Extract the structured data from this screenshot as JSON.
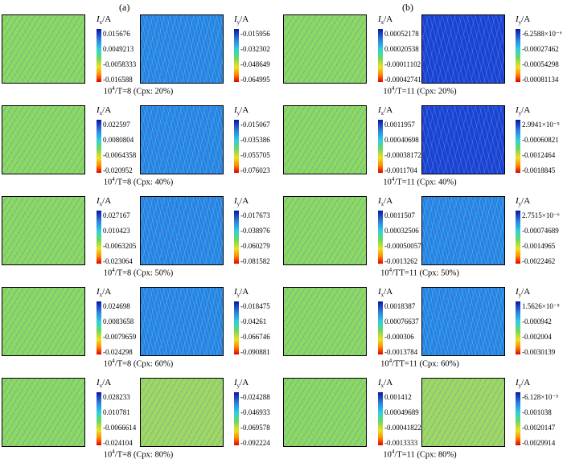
{
  "panels": {
    "a": {
      "label": "(a)"
    },
    "b": {
      "label": "(b)"
    }
  },
  "colorbar_titles": {
    "x": "I",
    "x_sub": "x",
    "y": "I",
    "y_sub": "y",
    "unit": "/A"
  },
  "rows_a": [
    {
      "caption_prefix": "10",
      "caption_sup": "4",
      "caption_rest": "/T=8 (Cpx: 20%)",
      "ix": [
        "0.015676",
        "0.0049213",
        "-0.0058333",
        "-0.016588"
      ],
      "iy": [
        "-0.015956",
        "-0.032302",
        "-0.048649",
        "-0.064995"
      ]
    },
    {
      "caption_prefix": "10",
      "caption_sup": "4",
      "caption_rest": "/T=8 (Cpx: 40%)",
      "ix": [
        "0.022597",
        "0.0080804",
        "-0.0064358",
        "-0.020952"
      ],
      "iy": [
        "-0.015067",
        "-0.035386",
        "-0.055705",
        "-0.076023"
      ]
    },
    {
      "caption_prefix": "10",
      "caption_sup": "4",
      "caption_rest": "/T=8 (Cpx: 50%)",
      "ix": [
        "0.027167",
        "0.010423",
        "-0.0063205",
        "-0.023064"
      ],
      "iy": [
        "-0.017673",
        "-0.038976",
        "-0.060279",
        "-0.081582"
      ]
    },
    {
      "caption_prefix": "10",
      "caption_sup": "4",
      "caption_rest": "/T=8 (Cpx: 60%)",
      "ix": [
        "0.024698",
        "0.0083658",
        "-0.0079659",
        "-0.024298"
      ],
      "iy": [
        "-0.018475",
        "-0.04261",
        "-0.066746",
        "-0.090881"
      ]
    },
    {
      "caption_prefix": "10",
      "caption_sup": "4",
      "caption_rest": "/T=8 (Cpx: 80%)",
      "ix": [
        "0.028233",
        "0.010781",
        "-0.0066614",
        "-0.024104"
      ],
      "iy": [
        "-0.024288",
        "-0.046933",
        "-0.069578",
        "-0.092224"
      ]
    }
  ],
  "rows_b": [
    {
      "caption_prefix": "10",
      "caption_sup": "4",
      "caption_rest": "/T=11 (Cpx: 20%)",
      "ix": [
        "0.00052178",
        "0.00020538",
        "-0.00011102",
        "-0.00042741"
      ],
      "iy": [
        "-6.2588×10⁻⁶",
        "-0.00027462",
        "-0.00054298",
        "-0.00081134"
      ]
    },
    {
      "caption_prefix": "10",
      "caption_sup": "4",
      "caption_rest": "/T=11 (Cpx: 40%)",
      "ix": [
        "0.0011957",
        "0.00040698",
        "-0.00038172",
        "-0.0011704"
      ],
      "iy": [
        "2.9941×10⁻⁵",
        "-0.00060821",
        "-0.0012464",
        "-0.0018845"
      ]
    },
    {
      "caption_prefix": "10",
      "caption_sup": "4",
      "caption_rest": "/TT=11 (Cpx: 50%)",
      "ix": [
        "0.0011507",
        "0.00032506",
        "-0.00050057",
        "-0.0013262"
      ],
      "iy": [
        "2.7515×10⁻⁶",
        "-0.00074689",
        "-0.0014965",
        "-0.0022462"
      ]
    },
    {
      "caption_prefix": "10",
      "caption_sup": "4",
      "caption_rest": "/TT=11 (Cpx: 60%)",
      "ix": [
        "0.0018387",
        "0.00076637",
        "-0.000306",
        "-0.0013784"
      ],
      "iy": [
        "1.5626×10⁻⁵",
        "-0.000942",
        "-0.002004",
        "-0.0030139"
      ]
    },
    {
      "caption_prefix": "10",
      "caption_sup": "4",
      "caption_rest": "/T=11 (Cpx: 80%)",
      "ix": [
        "0.001412",
        "0.00049689",
        "-0.00041822",
        "-0.0013333"
      ],
      "iy": [
        "-6.128×10⁻⁵",
        "-0.001038",
        "-0.0020147",
        "-0.0029914"
      ]
    }
  ]
}
